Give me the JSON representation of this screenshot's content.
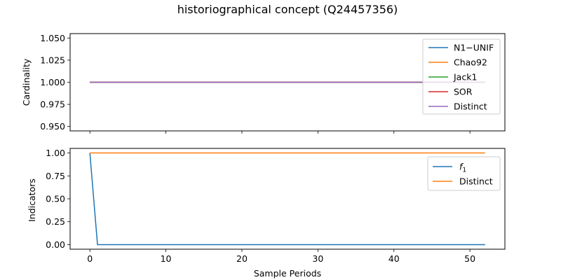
{
  "chart_data": {
    "title": "historiographical concept (Q24457356)",
    "xlabel": "Sample Periods",
    "xlim": [
      -2.6,
      54.6
    ],
    "xticks": [
      0,
      10,
      20,
      30,
      40,
      50
    ],
    "x_points": 53,
    "panels": [
      {
        "type": "line",
        "ylabel": "Cardinality",
        "ylim": [
          0.945,
          1.055
        ],
        "yticks": [
          "0.950",
          "0.975",
          "1.000",
          "1.025",
          "1.050"
        ],
        "grid": false,
        "legend_position": "upper-right",
        "series": [
          {
            "name": "N1−UNIF",
            "color": "#1f77b4",
            "constant": 1.0
          },
          {
            "name": "Chao92",
            "color": "#ff7f0e",
            "constant": 1.0
          },
          {
            "name": "Jack1",
            "color": "#2ca02c",
            "constant": 1.0
          },
          {
            "name": "SOR",
            "color": "#d62728",
            "constant": 1.0
          },
          {
            "name": "Distinct",
            "color": "#9467bd",
            "constant": 1.0
          }
        ]
      },
      {
        "type": "line",
        "ylabel": "Indicators",
        "ylim": [
          -0.05,
          1.05
        ],
        "yticks": [
          "0.00",
          "0.25",
          "0.50",
          "0.75",
          "1.00"
        ],
        "grid": false,
        "legend_position": "upper-right",
        "series": [
          {
            "name": "f",
            "name_subscript": "1",
            "color": "#1f77b4",
            "first": 1.0,
            "rest": 0.0
          },
          {
            "name": "Distinct",
            "color": "#ff7f0e",
            "constant": 1.0
          }
        ]
      }
    ]
  }
}
